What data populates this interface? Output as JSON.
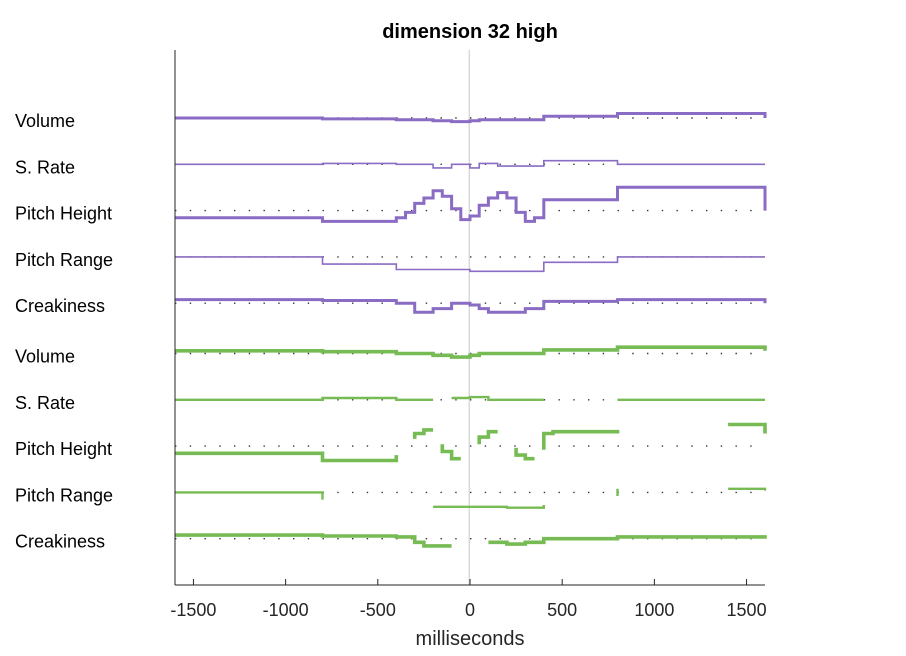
{
  "chart_data": {
    "type": "line",
    "title": "dimension 32 high",
    "xlabel": "milliseconds",
    "xlim": [
      -1600,
      1600
    ],
    "xticks": [
      -1500,
      -1000,
      -500,
      0,
      500,
      1000,
      1500
    ],
    "zero_line": true,
    "colors": {
      "purple": "#8a6cc4",
      "green": "#77bb55",
      "axis": "#262626",
      "zero": "#c8c8c8"
    },
    "rows": [
      {
        "label": "Volume",
        "color": "#8a6cc4",
        "width": 3,
        "segments": [
          [
            [
              -1600,
              0
            ],
            [
              -800,
              0
            ],
            [
              -800,
              -1
            ],
            [
              -400,
              -1
            ],
            [
              -400,
              -2
            ],
            [
              -200,
              -2
            ],
            [
              -200,
              -3
            ],
            [
              -100,
              -3
            ],
            [
              -100,
              -4
            ],
            [
              0,
              -4
            ],
            [
              0,
              -3
            ],
            [
              50,
              -3
            ],
            [
              50,
              -2
            ],
            [
              400,
              -2
            ],
            [
              400,
              2
            ],
            [
              800,
              2
            ],
            [
              800,
              5
            ],
            [
              1600,
              5
            ],
            [
              1600,
              0
            ]
          ]
        ]
      },
      {
        "label": "S. Rate",
        "color": "#8a6cc4",
        "width": 1.6,
        "segments": [
          [
            [
              -1600,
              0
            ],
            [
              -800,
              0
            ],
            [
              -800,
              1
            ],
            [
              -400,
              1
            ],
            [
              -400,
              0
            ],
            [
              -200,
              0
            ],
            [
              -200,
              -4
            ],
            [
              -100,
              -4
            ],
            [
              -100,
              0
            ],
            [
              0,
              0
            ],
            [
              0,
              -4
            ],
            [
              50,
              -4
            ],
            [
              50,
              1
            ],
            [
              150,
              1
            ],
            [
              150,
              -2
            ],
            [
              400,
              -2
            ],
            [
              400,
              4
            ],
            [
              800,
              4
            ],
            [
              800,
              0
            ],
            [
              1600,
              0
            ]
          ]
        ]
      },
      {
        "label": "Pitch Height",
        "color": "#8a6cc4",
        "width": 3,
        "segments": [
          [
            [
              -1600,
              -8
            ],
            [
              -800,
              -8
            ],
            [
              -800,
              -12
            ],
            [
              -400,
              -12
            ],
            [
              -400,
              -8
            ],
            [
              -350,
              -8
            ],
            [
              -350,
              -2
            ],
            [
              -300,
              -2
            ],
            [
              -300,
              8
            ],
            [
              -250,
              8
            ],
            [
              -250,
              14
            ],
            [
              -200,
              14
            ],
            [
              -200,
              22
            ],
            [
              -150,
              22
            ],
            [
              -150,
              16
            ],
            [
              -100,
              16
            ],
            [
              -100,
              2
            ],
            [
              -50,
              2
            ],
            [
              -50,
              -10
            ],
            [
              0,
              -10
            ],
            [
              0,
              -6
            ],
            [
              50,
              -6
            ],
            [
              50,
              6
            ],
            [
              100,
              6
            ],
            [
              100,
              14
            ],
            [
              150,
              14
            ],
            [
              150,
              20
            ],
            [
              200,
              20
            ],
            [
              200,
              14
            ],
            [
              250,
              14
            ],
            [
              250,
              -2
            ],
            [
              300,
              -2
            ],
            [
              300,
              -12
            ],
            [
              350,
              -12
            ],
            [
              350,
              -8
            ],
            [
              400,
              -8
            ],
            [
              400,
              12
            ],
            [
              800,
              12
            ],
            [
              800,
              26
            ],
            [
              1600,
              26
            ],
            [
              1600,
              0
            ]
          ]
        ]
      },
      {
        "label": "Pitch Range",
        "color": "#8a6cc4",
        "width": 1.6,
        "segments": [
          [
            [
              -1600,
              0
            ],
            [
              -800,
              0
            ],
            [
              -800,
              -8
            ],
            [
              -400,
              -8
            ],
            [
              -400,
              -14
            ],
            [
              0,
              -14
            ],
            [
              0,
              -16
            ],
            [
              400,
              -16
            ],
            [
              400,
              -6
            ],
            [
              800,
              -6
            ],
            [
              800,
              0
            ],
            [
              1600,
              0
            ]
          ]
        ]
      },
      {
        "label": "Creakiness",
        "color": "#8a6cc4",
        "width": 3,
        "segments": [
          [
            [
              -1600,
              4
            ],
            [
              -800,
              4
            ],
            [
              -800,
              3
            ],
            [
              -400,
              3
            ],
            [
              -400,
              0
            ],
            [
              -300,
              0
            ],
            [
              -300,
              -10
            ],
            [
              -200,
              -10
            ],
            [
              -200,
              -6
            ],
            [
              -100,
              -6
            ],
            [
              -100,
              0
            ],
            [
              0,
              0
            ],
            [
              0,
              -2
            ],
            [
              50,
              -2
            ],
            [
              50,
              -6
            ],
            [
              100,
              -6
            ],
            [
              100,
              -10
            ],
            [
              300,
              -10
            ],
            [
              300,
              -6
            ],
            [
              400,
              -6
            ],
            [
              400,
              2
            ],
            [
              800,
              2
            ],
            [
              800,
              4
            ],
            [
              1600,
              4
            ],
            [
              1600,
              0
            ]
          ]
        ]
      },
      {
        "label": "Volume",
        "color": "#77bb55",
        "width": 3.6,
        "segments": [
          [
            [
              -1600,
              3
            ],
            [
              -800,
              3
            ],
            [
              -800,
              2
            ],
            [
              -400,
              2
            ],
            [
              -400,
              0
            ],
            [
              -200,
              0
            ],
            [
              -200,
              -2
            ],
            [
              -100,
              -2
            ],
            [
              -100,
              -4
            ],
            [
              0,
              -4
            ],
            [
              0,
              -2
            ],
            [
              50,
              -2
            ],
            [
              50,
              0
            ],
            [
              400,
              0
            ],
            [
              400,
              4
            ],
            [
              800,
              4
            ],
            [
              800,
              7
            ],
            [
              1600,
              7
            ],
            [
              1600,
              3
            ]
          ]
        ]
      },
      {
        "label": "S. Rate",
        "color": "#77bb55",
        "width": 2.4,
        "segments": [
          [
            [
              -1600,
              0
            ],
            [
              -800,
              0
            ],
            [
              -800,
              2
            ],
            [
              -400,
              2
            ],
            [
              -400,
              0
            ],
            [
              -200,
              0
            ]
          ],
          [
            [
              -100,
              2
            ],
            [
              0,
              2
            ],
            [
              0,
              3
            ],
            [
              100,
              3
            ],
            [
              100,
              0
            ],
            [
              400,
              0
            ]
          ],
          [
            [
              800,
              0
            ],
            [
              1600,
              0
            ]
          ]
        ]
      },
      {
        "label": "Pitch Height",
        "color": "#77bb55",
        "width": 3.6,
        "segments": [
          [
            [
              -1600,
              -8
            ],
            [
              -800,
              -8
            ],
            [
              -800,
              -16
            ],
            [
              -400,
              -16
            ],
            [
              -400,
              -10
            ]
          ],
          [
            [
              -300,
              8
            ],
            [
              -300,
              14
            ],
            [
              -250,
              14
            ],
            [
              -250,
              18
            ],
            [
              -200,
              18
            ]
          ],
          [
            [
              -150,
              2
            ],
            [
              -150,
              -6
            ],
            [
              -100,
              -6
            ],
            [
              -100,
              -14
            ],
            [
              -50,
              -14
            ]
          ],
          [
            [
              50,
              2
            ],
            [
              50,
              10
            ],
            [
              100,
              10
            ],
            [
              100,
              16
            ],
            [
              150,
              16
            ]
          ],
          [
            [
              250,
              -2
            ],
            [
              250,
              -10
            ],
            [
              300,
              -10
            ],
            [
              300,
              -14
            ],
            [
              350,
              -14
            ]
          ],
          [
            [
              400,
              -4
            ],
            [
              400,
              14
            ],
            [
              450,
              14
            ],
            [
              450,
              16
            ],
            [
              800,
              16
            ],
            [
              800,
              18
            ]
          ],
          [
            [
              1400,
              24
            ],
            [
              1600,
              24
            ],
            [
              1600,
              14
            ]
          ]
        ]
      },
      {
        "label": "Pitch Range",
        "color": "#77bb55",
        "width": 2.4,
        "segments": [
          [
            [
              -1600,
              0
            ],
            [
              -800,
              0
            ],
            [
              -800,
              -8
            ]
          ],
          [
            [
              -200,
              -16
            ],
            [
              200,
              -16
            ],
            [
              200,
              -17
            ],
            [
              400,
              -17
            ],
            [
              400,
              -14
            ]
          ],
          [
            [
              800,
              4
            ],
            [
              800,
              -4
            ]
          ],
          [
            [
              1400,
              4
            ],
            [
              1600,
              4
            ],
            [
              1600,
              2
            ]
          ]
        ]
      },
      {
        "label": "Creakiness",
        "color": "#77bb55",
        "width": 3.6,
        "segments": [
          [
            [
              -1600,
              4
            ],
            [
              -800,
              4
            ],
            [
              -800,
              3
            ],
            [
              -400,
              3
            ],
            [
              -400,
              2
            ],
            [
              -300,
              2
            ],
            [
              -300,
              -4
            ],
            [
              -250,
              -4
            ],
            [
              -250,
              -8
            ],
            [
              -100,
              -8
            ]
          ],
          [
            [
              100,
              -4
            ],
            [
              200,
              -4
            ],
            [
              200,
              -6
            ],
            [
              300,
              -6
            ],
            [
              300,
              -4
            ],
            [
              400,
              -4
            ],
            [
              400,
              0
            ],
            [
              800,
              0
            ],
            [
              800,
              2
            ],
            [
              1600,
              2
            ],
            [
              1600,
              0
            ]
          ]
        ]
      }
    ]
  }
}
